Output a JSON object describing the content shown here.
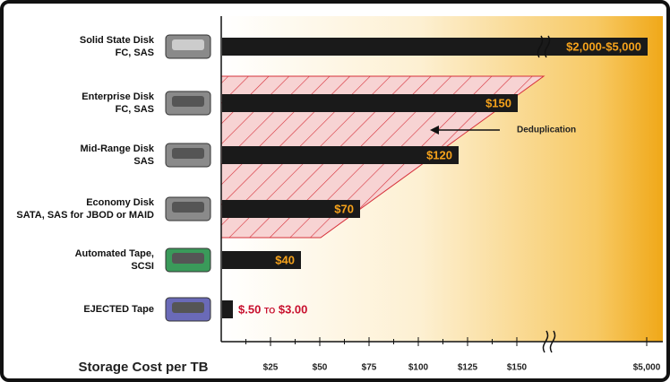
{
  "chart_data": {
    "type": "hbar",
    "title": "Storage Cost per TB",
    "categories": [
      [
        "Solid State Disk",
        "FC, SAS"
      ],
      [
        "Enterprise Disk",
        "FC, SAS"
      ],
      [
        "Mid-Range Disk",
        "SAS"
      ],
      [
        "Economy Disk",
        "SATA, SAS for JBOD or MAID"
      ],
      [
        "Automated Tape,",
        "SCSI"
      ],
      [
        "EJECTED Tape"
      ]
    ],
    "values": [
      5000,
      150,
      120,
      70,
      40,
      3
    ],
    "value_labels": [
      "$2,000-$5,000",
      "$150",
      "$120",
      "$70",
      "$40",
      "$.50 to $3.00"
    ],
    "color": "#1a1a1a",
    "label_colors": [
      "#f5a21b",
      "#f5a21b",
      "#f5a21b",
      "#f5a21b",
      "#f5a21b",
      "#c8102e"
    ],
    "xlim": [
      0,
      5000
    ],
    "xticks": [
      {
        "value": 25,
        "label": "$25"
      },
      {
        "value": 50,
        "label": "$50"
      },
      {
        "value": 75,
        "label": "$75"
      },
      {
        "value": 100,
        "label": "$100"
      },
      {
        "value": 125,
        "label": "$125"
      },
      {
        "value": 150,
        "label": "$150"
      },
      {
        "value": 5000,
        "label": "$5,000"
      }
    ],
    "annotation": "Deduplication"
  }
}
